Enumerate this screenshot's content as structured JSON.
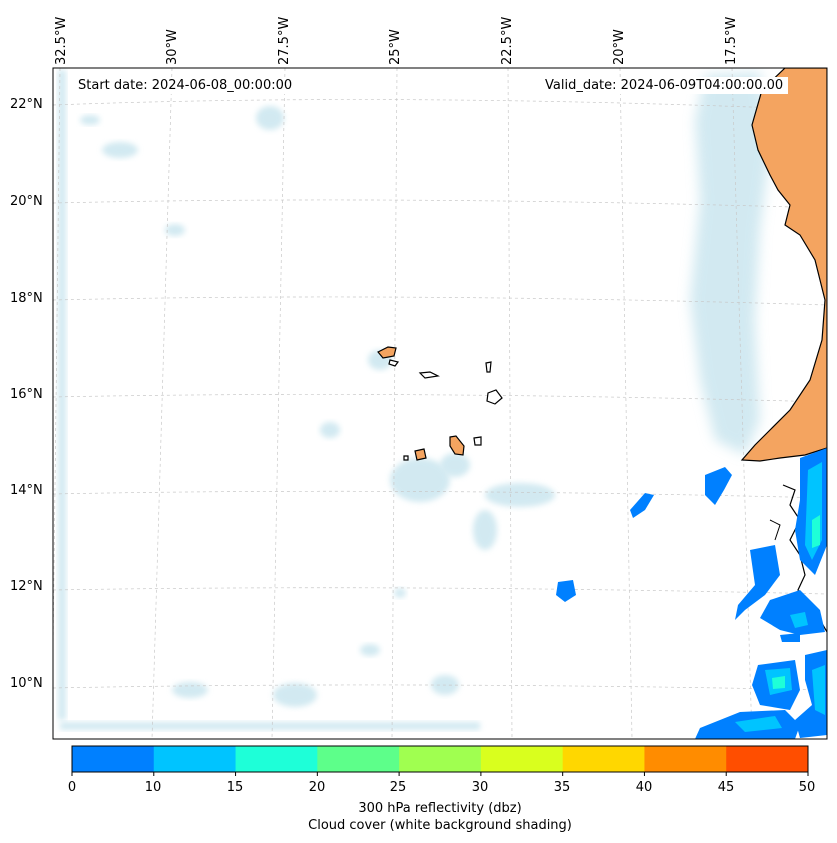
{
  "header": {
    "start_date": "Start date: 2024-06-08_00:00:00",
    "valid_date": "Valid_date: 2024-06-09T04:00:00.00"
  },
  "axes": {
    "lon_labels": [
      "32.5°W",
      "30°W",
      "27.5°W",
      "25°W",
      "22.5°W",
      "20°W",
      "17.5°W"
    ],
    "lat_labels": [
      "22°N",
      "20°N",
      "18°N",
      "16°N",
      "14°N",
      "12°N",
      "10°N"
    ]
  },
  "colorbar": {
    "ticks": [
      "0",
      "10",
      "15",
      "20",
      "25",
      "30",
      "35",
      "40",
      "45",
      "50"
    ],
    "colors": [
      "#0080ff",
      "#00c4ff",
      "#1effd8",
      "#5dff8a",
      "#a0ff50",
      "#d9ff1e",
      "#ffd700",
      "#ff8c00",
      "#ff4e00"
    ],
    "label_line1": "300 hPa reflectivity (dbz)",
    "label_line2": "Cloud cover (white background shading)"
  },
  "colors": {
    "land": "#f4a460",
    "cloud": "#add8e6",
    "grid": "#c8c8c8"
  }
}
